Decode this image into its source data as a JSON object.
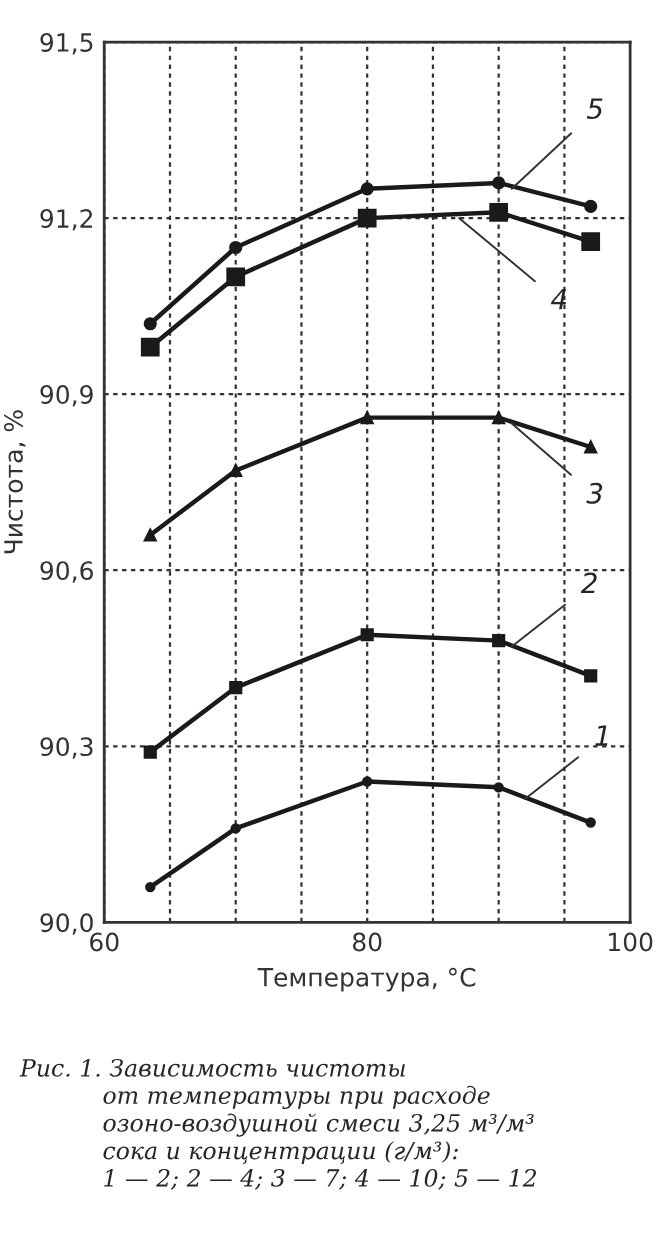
{
  "chart_data": {
    "type": "line",
    "xlabel": "Температура, °C",
    "ylabel": "Чистота, %",
    "xlim": [
      60,
      100
    ],
    "xticks": [
      60,
      {
        "value": 65,
        "label": null
      },
      {
        "value": 70,
        "label": null
      },
      {
        "value": 75,
        "label": null
      },
      80,
      {
        "value": 85,
        "label": null
      },
      {
        "value": 90,
        "label": null
      },
      {
        "value": 95,
        "label": null
      },
      100
    ],
    "ylim": [
      90.0,
      91.5
    ],
    "yticks": [
      {
        "value": 90.0,
        "label": "90,0"
      },
      {
        "value": 90.3,
        "label": "90,3"
      },
      {
        "value": 90.6,
        "label": "90,6"
      },
      {
        "value": 90.9,
        "label": "90,9"
      },
      {
        "value": 91.2,
        "label": "91,2"
      },
      {
        "value": 91.5,
        "label": "91,5"
      }
    ],
    "grid": true,
    "line_style": "solid",
    "x": [
      63.5,
      70,
      80,
      90,
      97
    ],
    "series": [
      {
        "color": "#1a1a1a",
        "marker": "circle",
        "values": [
          90.06,
          90.16,
          90.24,
          90.23,
          90.17
        ]
      },
      {
        "color": "#1a1a1a",
        "marker": "square",
        "values": [
          90.29,
          90.4,
          90.49,
          90.48,
          90.42
        ]
      },
      {
        "color": "#1a1a1a",
        "marker": "triangle",
        "values": [
          90.66,
          90.77,
          90.86,
          90.86,
          90.81
        ]
      },
      {
        "color": "#1a1a1a",
        "marker": "square",
        "values": [
          90.98,
          91.1,
          91.2,
          91.21,
          91.16
        ]
      },
      {
        "color": "#1a1a1a",
        "marker": "circle",
        "values": [
          91.02,
          91.15,
          91.25,
          91.26,
          91.22
        ]
      }
    ],
    "annotations": [
      {
        "text": "1",
        "x": 92,
        "y": 90.21
      },
      {
        "text": "2",
        "x": 91,
        "y": 90.47
      },
      {
        "text": "3",
        "x": 91,
        "y": 90.85
      },
      {
        "text": "4",
        "x": 87,
        "y": 91.2
      },
      {
        "text": "5",
        "x": 91,
        "y": 91.25
      },
      "Рис. 1. Зависимость чистоты\n           от температуры при расходе\n           озоно-воздушной смеси 3,25 м³/м³\n           сока и концентрации (г/м³):\n           1 — 2; 2 — 4; 3 — 7; 4 — 10; 5 — 12"
    ]
  }
}
